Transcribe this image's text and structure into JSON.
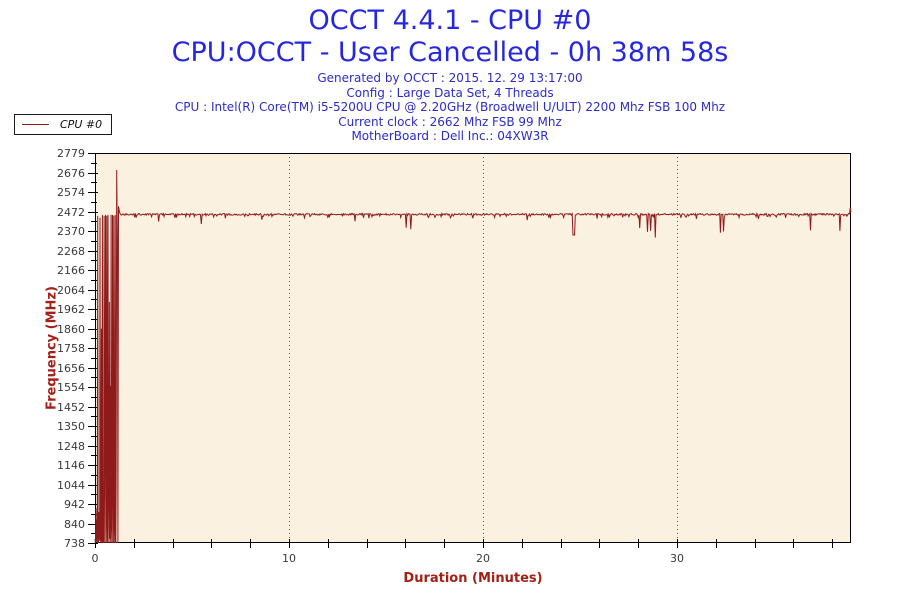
{
  "header": {
    "title": "OCCT 4.4.1 - CPU #0",
    "subtitle": "CPU:OCCT - User Cancelled - 0h 38m 58s",
    "info": [
      "Generated by OCCT : 2015. 12. 29 13:17:00",
      "Config : Large Data Set, 4 Threads",
      "CPU : Intel(R) Core(TM) i5-5200U CPU @ 2.20GHz (Broadwell U/ULT) 2200 Mhz FSB 100 Mhz",
      "Current clock : 2662 Mhz FSB 99 Mhz",
      "MotherBoard : Dell Inc.: 04XW3R"
    ]
  },
  "legend": {
    "label": "CPU #0"
  },
  "colors": {
    "title": "#2727e0",
    "info": "#2c2cc8",
    "line": "#8f1a1a",
    "axis_label": "#a32014",
    "plot_bg": "#fbf1e0",
    "axis": "#000000",
    "grid": "#555555",
    "tick_text": "#3a3a3a"
  },
  "chart_data": {
    "type": "line",
    "title": "OCCT 4.4.1 - CPU #0",
    "xlabel": "Duration (Minutes)",
    "ylabel": "Frequency (MHz)",
    "xlim": [
      0,
      38.97
    ],
    "ylim": [
      738,
      2779
    ],
    "yticks": [
      2779,
      2676,
      2574,
      2472,
      2370,
      2268,
      2166,
      2064,
      1962,
      1860,
      1758,
      1656,
      1554,
      1452,
      1350,
      1248,
      1146,
      1044,
      942,
      840,
      738
    ],
    "xticks_labeled": [
      0,
      10,
      20,
      30
    ],
    "xtick_step": 2,
    "grid_x": [
      10,
      20,
      30
    ],
    "legend_position": "top-left-outside",
    "grid": "vertical-dotted-only",
    "series": {
      "name": "CPU #0",
      "start_points": [
        [
          0.0,
          760
        ],
        [
          0.02,
          738
        ],
        [
          0.05,
          920
        ],
        [
          0.07,
          745
        ],
        [
          0.1,
          860
        ],
        [
          0.12,
          738
        ],
        [
          0.14,
          2450
        ],
        [
          0.16,
          800
        ],
        [
          0.18,
          738
        ],
        [
          0.21,
          900
        ],
        [
          0.24,
          750
        ],
        [
          0.26,
          2440
        ],
        [
          0.28,
          760
        ],
        [
          0.31,
          738
        ],
        [
          0.33,
          1860
        ],
        [
          0.35,
          745
        ],
        [
          0.38,
          2455
        ],
        [
          0.4,
          738
        ],
        [
          0.43,
          980
        ],
        [
          0.45,
          738
        ],
        [
          0.47,
          2450
        ],
        [
          0.49,
          1452
        ],
        [
          0.51,
          738
        ],
        [
          0.54,
          2455
        ],
        [
          0.56,
          1300
        ],
        [
          0.58,
          738
        ],
        [
          0.61,
          2450
        ],
        [
          0.63,
          860
        ],
        [
          0.65,
          738
        ],
        [
          0.67,
          2455
        ],
        [
          0.69,
          1050
        ],
        [
          0.72,
          738
        ],
        [
          0.74,
          2000
        ],
        [
          0.76,
          760
        ],
        [
          0.79,
          1560
        ],
        [
          0.81,
          738
        ],
        [
          0.83,
          2455
        ],
        [
          0.85,
          850
        ],
        [
          0.88,
          738
        ],
        [
          0.9,
          2455
        ],
        [
          0.92,
          1230
        ],
        [
          0.95,
          738
        ],
        [
          0.97,
          2450
        ],
        [
          0.99,
          860
        ],
        [
          1.02,
          738
        ],
        [
          1.04,
          2455
        ],
        [
          1.07,
          738
        ],
        [
          1.09,
          1044
        ],
        [
          1.12,
          2690
        ],
        [
          1.14,
          2460
        ],
        [
          1.16,
          2300
        ],
        [
          1.18,
          738
        ],
        [
          1.21,
          2500
        ],
        [
          1.24,
          2482
        ],
        [
          1.28,
          2465
        ],
        [
          1.32,
          2458
        ]
      ],
      "steady": {
        "from": 1.36,
        "to": 38.88,
        "step": 0.04,
        "value": 2458,
        "noise": 4.5
      },
      "dips": [
        [
          3.28,
          2420
        ],
        [
          4.12,
          2440
        ],
        [
          5.48,
          2408
        ],
        [
          6.72,
          2438
        ],
        [
          8.6,
          2430
        ],
        [
          10.8,
          2440
        ],
        [
          12.08,
          2442
        ],
        [
          13.4,
          2422
        ],
        [
          14.12,
          2438
        ],
        [
          16.04,
          2388
        ],
        [
          16.28,
          2380
        ],
        [
          17.2,
          2442
        ],
        [
          18.32,
          2440
        ],
        [
          19.48,
          2438
        ],
        [
          20.6,
          2442
        ],
        [
          22.28,
          2428
        ],
        [
          23.4,
          2440
        ],
        [
          24.68,
          2350,
          0.05
        ],
        [
          25.88,
          2436
        ],
        [
          27.2,
          2442
        ],
        [
          28.08,
          2386
        ],
        [
          28.48,
          2366
        ],
        [
          28.64,
          2372
        ],
        [
          28.88,
          2336
        ],
        [
          30.2,
          2440
        ],
        [
          31.0,
          2434
        ],
        [
          32.24,
          2362
        ],
        [
          32.4,
          2368
        ],
        [
          33.2,
          2442
        ],
        [
          34.2,
          2434
        ],
        [
          35.6,
          2440
        ],
        [
          36.88,
          2374
        ],
        [
          38.4,
          2372
        ]
      ],
      "end_points": [
        [
          38.9,
          2462
        ],
        [
          38.93,
          2492
        ],
        [
          38.97,
          2468
        ]
      ]
    }
  }
}
